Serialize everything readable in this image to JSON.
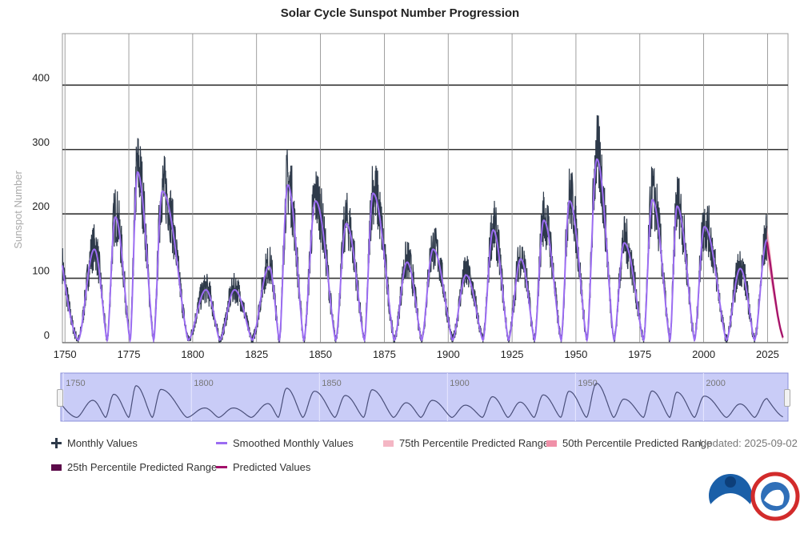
{
  "chart_data": {
    "type": "line",
    "title": "Solar Cycle Sunspot Number Progression",
    "ylabel": "Sunspot Number",
    "xlim": [
      1749,
      2033
    ],
    "ylim": [
      0,
      480
    ],
    "y_ticks": [
      0,
      100,
      200,
      300,
      400
    ],
    "x_ticks": [
      1750,
      1775,
      1800,
      1825,
      1850,
      1875,
      1900,
      1925,
      1950,
      1975,
      2000,
      2025
    ],
    "navigator_ticks": [
      1750,
      1800,
      1850,
      1900,
      1950,
      2000
    ],
    "grid": true,
    "smoothed_cycles": [
      {
        "min": 1755.2,
        "max": 1761.5,
        "peak": 145
      },
      {
        "min": 1766.5,
        "max": 1769.7,
        "peak": 195
      },
      {
        "min": 1775.5,
        "max": 1778.4,
        "peak": 265
      },
      {
        "min": 1784.7,
        "max": 1788.1,
        "peak": 235
      },
      {
        "min": 1798.3,
        "max": 1805.2,
        "peak": 82
      },
      {
        "min": 1810.6,
        "max": 1816.4,
        "peak": 82
      },
      {
        "min": 1823.3,
        "max": 1829.9,
        "peak": 118
      },
      {
        "min": 1833.9,
        "max": 1837.2,
        "peak": 245
      },
      {
        "min": 1843.5,
        "max": 1848.1,
        "peak": 220
      },
      {
        "min": 1856.0,
        "max": 1860.1,
        "peak": 185
      },
      {
        "min": 1867.2,
        "max": 1870.6,
        "peak": 232
      },
      {
        "min": 1878.9,
        "max": 1883.9,
        "peak": 125
      },
      {
        "min": 1889.6,
        "max": 1894.1,
        "peak": 145
      },
      {
        "min": 1901.7,
        "max": 1907.0,
        "peak": 105
      },
      {
        "min": 1913.6,
        "max": 1917.6,
        "peak": 175
      },
      {
        "min": 1923.6,
        "max": 1928.4,
        "peak": 130
      },
      {
        "min": 1933.8,
        "max": 1937.4,
        "peak": 190
      },
      {
        "min": 1944.2,
        "max": 1947.5,
        "peak": 220
      },
      {
        "min": 1954.3,
        "max": 1958.2,
        "peak": 285
      },
      {
        "min": 1964.9,
        "max": 1968.9,
        "peak": 155
      },
      {
        "min": 1976.5,
        "max": 1979.9,
        "peak": 222
      },
      {
        "min": 1986.8,
        "max": 1989.6,
        "peak": 212
      },
      {
        "min": 1996.4,
        "max": 2000.3,
        "peak": 180
      },
      {
        "min": 2008.9,
        "max": 2014.3,
        "peak": 115
      },
      {
        "min": 2019.9,
        "max": 2024.8,
        "peak": 160
      }
    ],
    "predicted": {
      "x": [
        2024.8,
        2026,
        2027,
        2028,
        2029,
        2030,
        2031
      ],
      "y": [
        156,
        125,
        95,
        68,
        42,
        22,
        8
      ]
    },
    "series": [
      {
        "name": "Monthly Values",
        "color": "#2e3a4a"
      },
      {
        "name": "Smoothed Monthly Values",
        "color": "#9b6cf2"
      },
      {
        "name": "75th Percentile Predicted Range",
        "color": "#f4b6c4"
      },
      {
        "name": "50th Percentile Predicted Range",
        "color": "#f090a8"
      },
      {
        "name": "25th Percentile Predicted Range",
        "color": "#5c0a4a"
      },
      {
        "name": "Predicted Values",
        "color": "#a3106a"
      }
    ]
  },
  "updated": "Updated: 2025-09-02",
  "logos": [
    {
      "name": "NOAA",
      "color": "#1a5fa8"
    },
    {
      "name": "NATIONAL WEATHER SERVICE",
      "color": "#d22b2b"
    }
  ]
}
